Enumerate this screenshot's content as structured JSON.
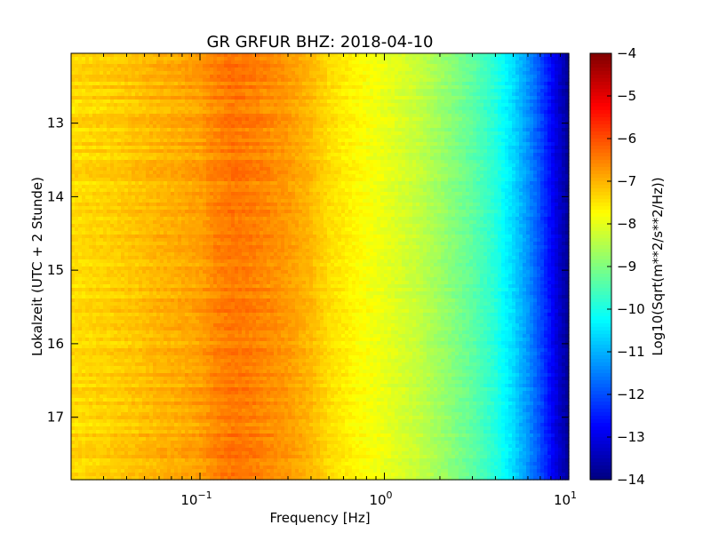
{
  "chart_data": {
    "type": "heatmap",
    "title": "GR GRFUR BHZ: 2018-04-10",
    "xlabel": "Frequency [Hz]",
    "ylabel": "Lokalzeit (UTC + 2 Stunde)",
    "colorbar_label": "Log10(Sqrt(m**2/s**2/Hz))",
    "x_scale": "log",
    "xlim": [
      0.02,
      10
    ],
    "ylim": [
      12.05,
      17.85
    ],
    "y_inverted": true,
    "clim": [
      -14,
      -4
    ],
    "colormap": "jet",
    "x_ticks": [
      {
        "value": 0.1,
        "base": "10",
        "exp": "−1"
      },
      {
        "value": 1,
        "base": "10",
        "exp": "0"
      },
      {
        "value": 10,
        "base": "10",
        "exp": "1"
      }
    ],
    "y_ticks": [
      {
        "value": 13,
        "label": "13"
      },
      {
        "value": 14,
        "label": "14"
      },
      {
        "value": 15,
        "label": "15"
      },
      {
        "value": 16,
        "label": "16"
      },
      {
        "value": 17,
        "label": "17"
      }
    ],
    "colorbar_ticks": [
      {
        "value": -4,
        "label": "−4"
      },
      {
        "value": -5,
        "label": "−5"
      },
      {
        "value": -6,
        "label": "−6"
      },
      {
        "value": -7,
        "label": "−7"
      },
      {
        "value": -8,
        "label": "−8"
      },
      {
        "value": -9,
        "label": "−9"
      },
      {
        "value": -10,
        "label": "−10"
      },
      {
        "value": -11,
        "label": "−11"
      },
      {
        "value": -12,
        "label": "−12"
      },
      {
        "value": -13,
        "label": "−13"
      },
      {
        "value": -14,
        "label": "−14"
      }
    ],
    "spectrum_profile": {
      "frequency_hz": [
        0.02,
        0.03,
        0.04,
        0.05,
        0.06,
        0.08,
        0.1,
        0.12,
        0.15,
        0.2,
        0.3,
        0.4,
        0.5,
        0.7,
        1.0,
        1.5,
        2.0,
        3.0,
        4.0,
        5.0,
        6.0,
        7.0,
        8.0,
        9.0,
        10.0
      ],
      "log10_amplitude": [
        -7.4,
        -7.3,
        -7.2,
        -7.1,
        -7.0,
        -6.9,
        -6.8,
        -6.55,
        -6.4,
        -6.5,
        -6.75,
        -7.05,
        -7.4,
        -7.7,
        -7.95,
        -8.3,
        -8.7,
        -9.3,
        -9.9,
        -10.6,
        -11.3,
        -12.0,
        -12.7,
        -13.3,
        -13.8
      ]
    }
  }
}
